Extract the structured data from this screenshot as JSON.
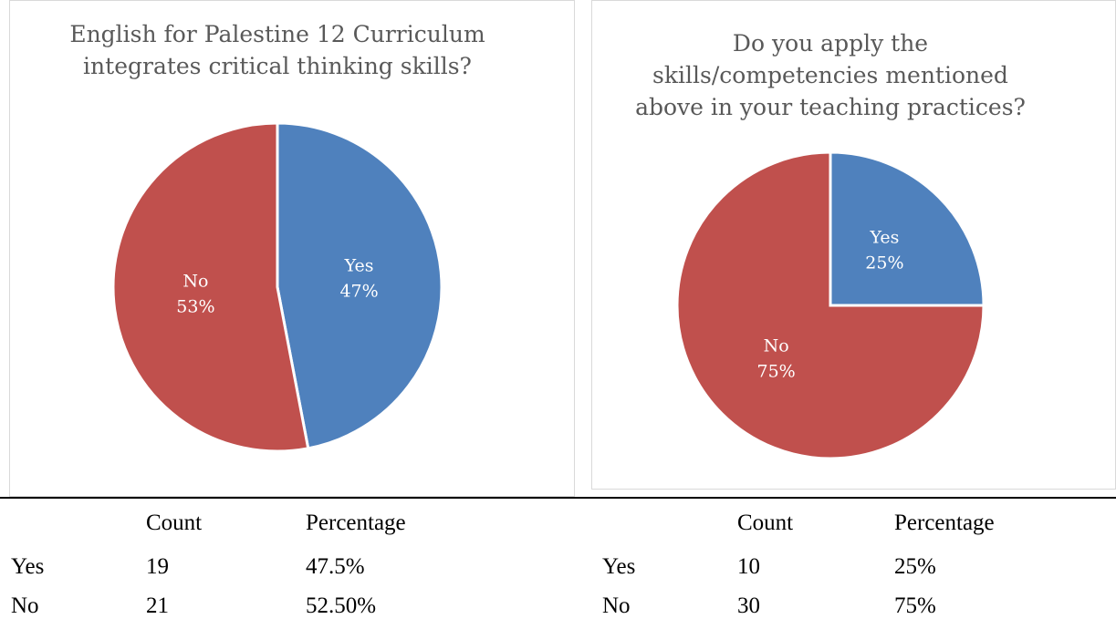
{
  "chart_data": [
    {
      "type": "pie",
      "title": "English for Palestine 12 Curriculum integrates critical thinking skills?",
      "categories": [
        "Yes",
        "No"
      ],
      "values": [
        47,
        53
      ],
      "value_labels": [
        "47%",
        "53%"
      ],
      "colors": [
        "#4f81bd",
        "#c0504d"
      ]
    },
    {
      "type": "pie",
      "title": "Do you apply the skills/competencies mentioned above in your teaching practices?",
      "categories": [
        "Yes",
        "No"
      ],
      "values": [
        25,
        75
      ],
      "value_labels": [
        "25%",
        "75%"
      ],
      "colors": [
        "#4f81bd",
        "#c0504d"
      ]
    }
  ],
  "tables": [
    {
      "columns": [
        "Count",
        "Percentage"
      ],
      "rows": [
        [
          "Yes",
          "19",
          "47.5%"
        ],
        [
          "No",
          "21",
          "52.50%"
        ]
      ]
    },
    {
      "columns": [
        "Count",
        "Percentage"
      ],
      "rows": [
        [
          "Yes",
          "10",
          "25%"
        ],
        [
          "No",
          "30",
          "75%"
        ]
      ]
    }
  ]
}
